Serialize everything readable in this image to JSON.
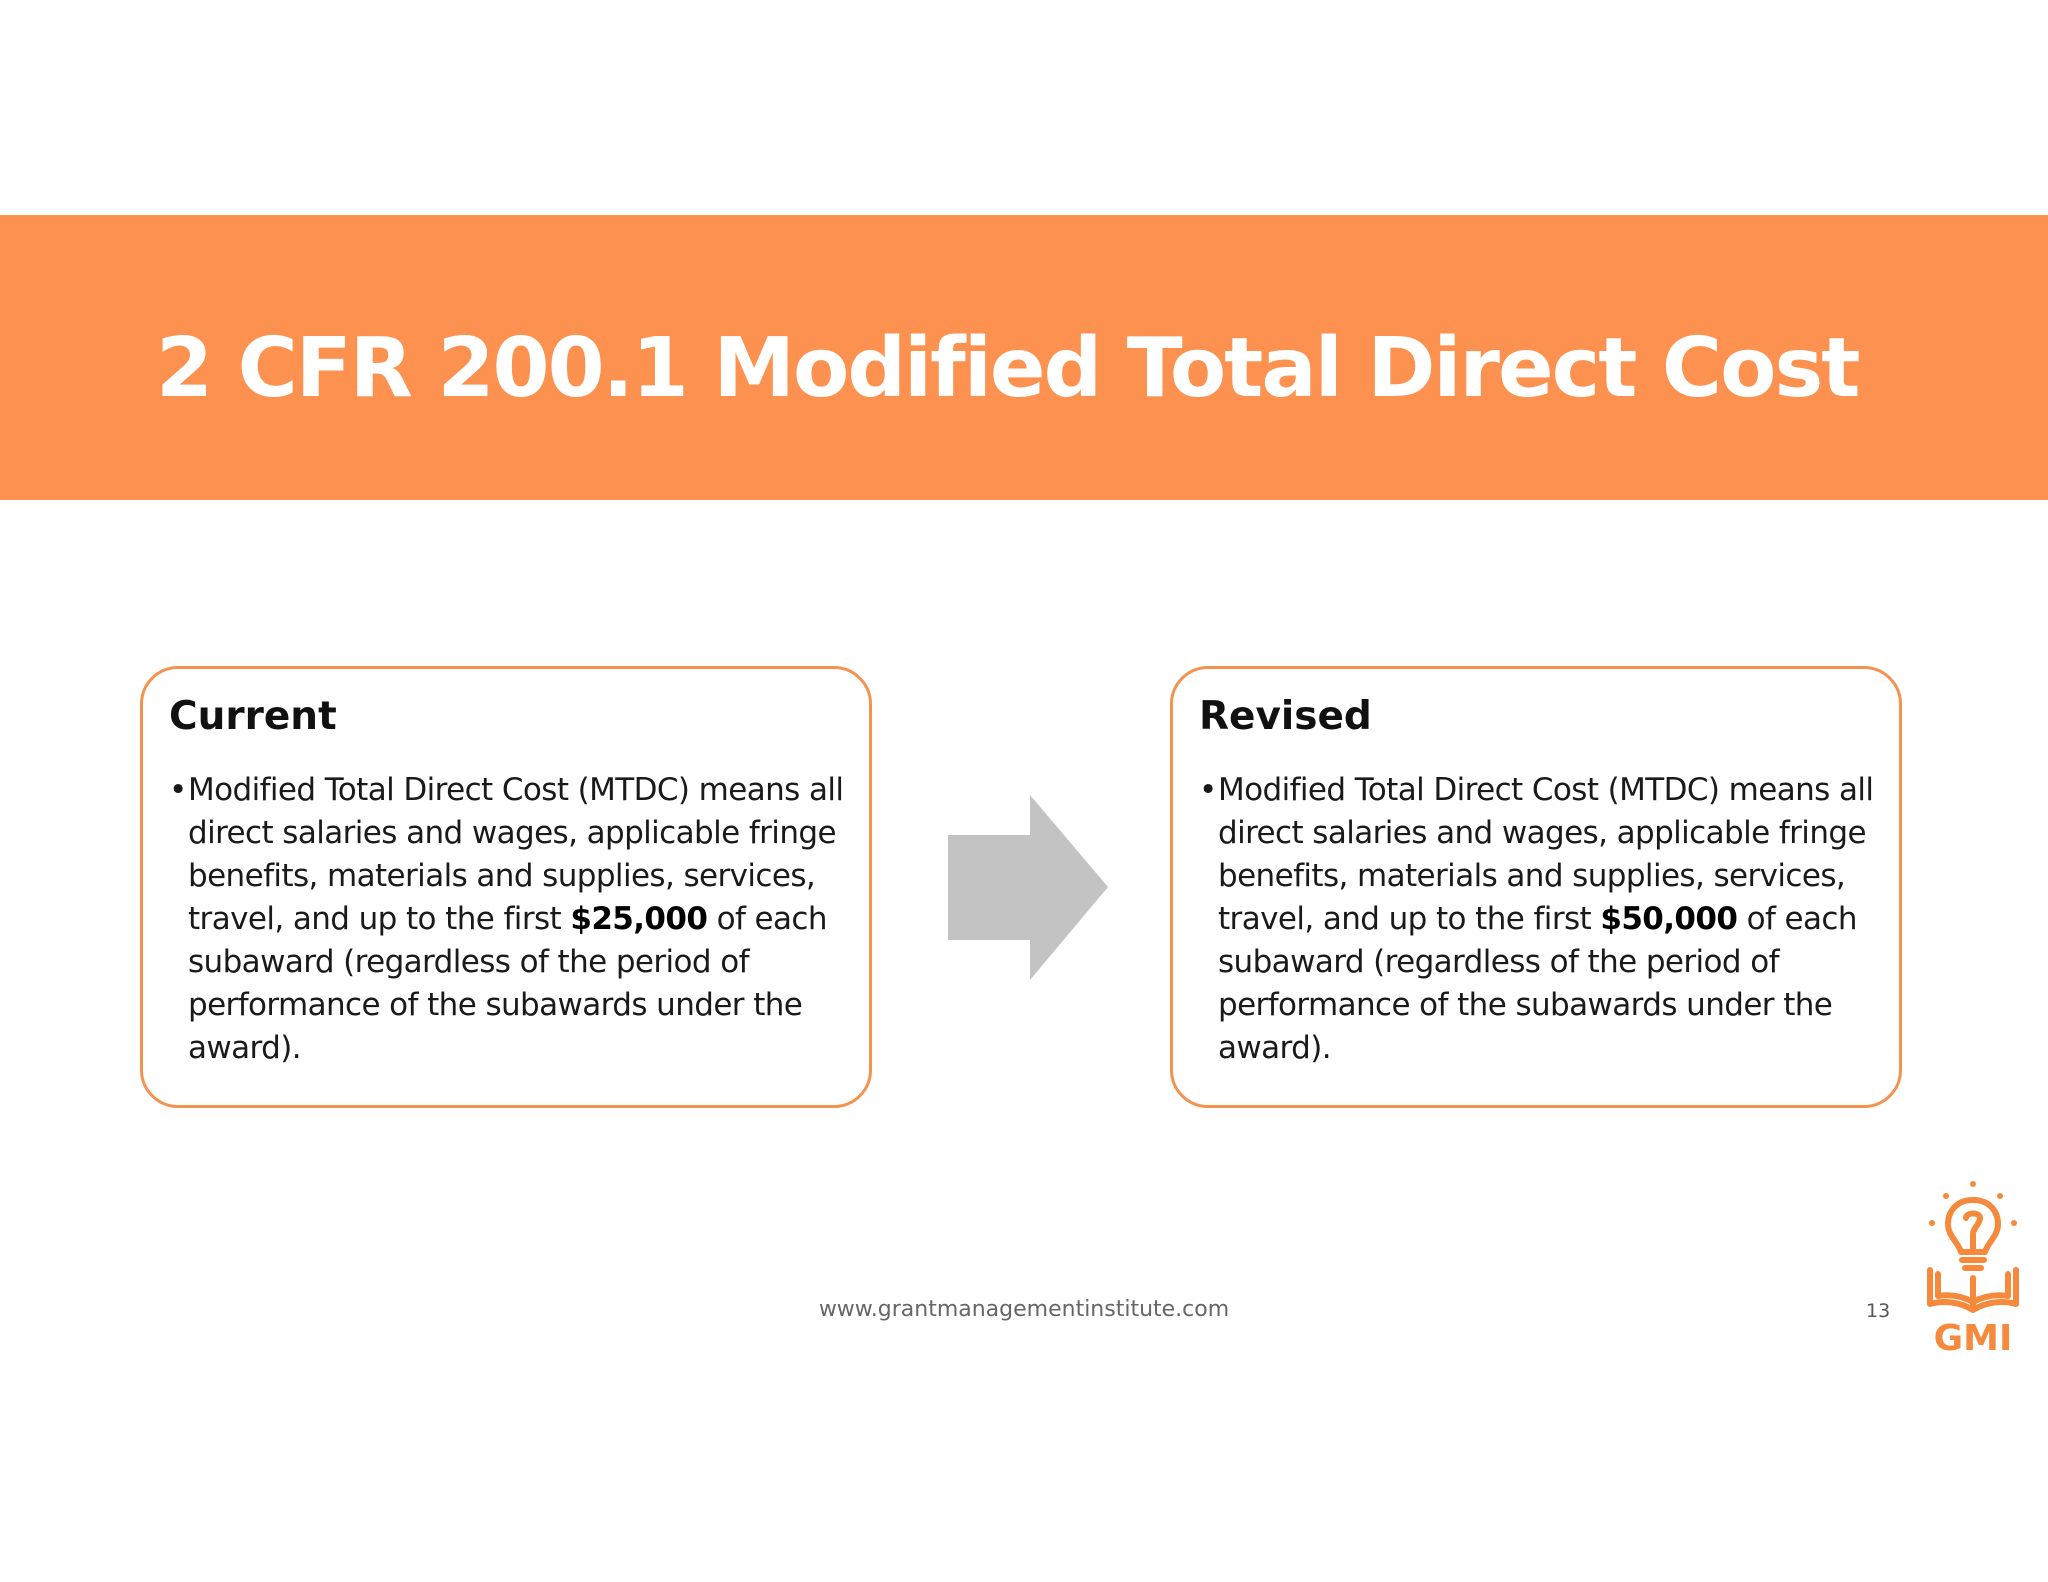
{
  "slide": {
    "title": "2 CFR 200.1 Modified Total Direct Cost",
    "footer_url": "www.grantmanagementinstitute.com",
    "page_number": "13"
  },
  "current": {
    "heading": "Current",
    "bullet_prefix": "Modified Total Direct Cost (MTDC) means all direct salaries and wages, applicable fringe benefits, materials and supplies, services, travel, and up to the first",
    "amount": "$25,000",
    "bullet_suffix": "of each subaward (regardless of the period of performance of the subawards under the award)."
  },
  "revised": {
    "heading": "Revised",
    "bullet_prefix": "Modified Total Direct Cost (MTDC) means all direct salaries and wages, applicable fringe benefits, materials and supplies, services, travel, and up to the first",
    "amount": "$50,000",
    "bullet_suffix": "of each subaward (regardless of the period of performance of the subawards under the award)."
  },
  "logo": {
    "text": "GMI",
    "icon": "lightbulb-book-icon"
  },
  "colors": {
    "accent": "#fd914f",
    "card_border": "#f3934f",
    "arrow": "#c3c3c3",
    "logo": "#f58a3c"
  }
}
